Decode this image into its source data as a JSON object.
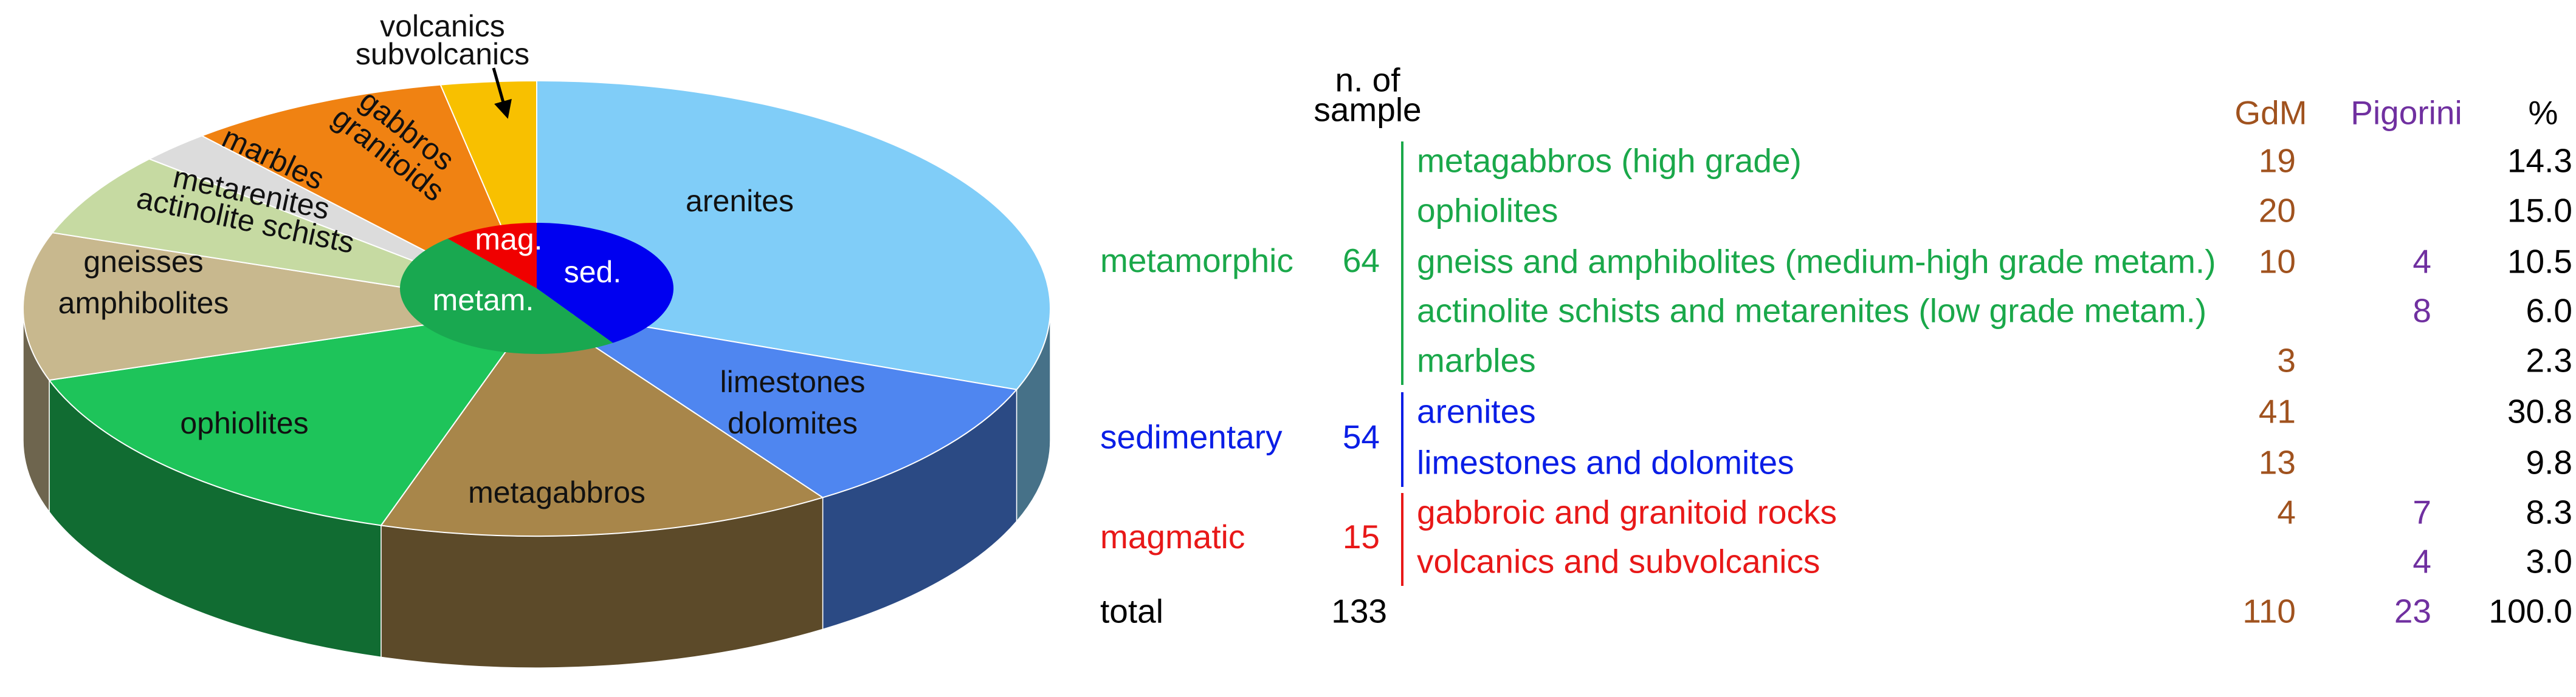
{
  "chart_data": [
    {
      "type": "pie3d",
      "categories": [
        [
          "arenites"
        ],
        [
          "limestones",
          "dolomites"
        ],
        [
          "metagabbros"
        ],
        [
          "ophiolites"
        ],
        [
          "gneisses",
          "amphibolites"
        ],
        [
          "metarenites",
          "actinolite schists"
        ],
        [
          "marbles"
        ],
        [
          "gabbros",
          "granitoids"
        ],
        [
          "volcanics",
          "subvolcanics"
        ]
      ],
      "values": [
        30.8,
        9.8,
        14.3,
        15.0,
        10.5,
        6.0,
        2.3,
        8.3,
        3.0
      ],
      "colors": [
        "#80cdf8",
        "#4f86f0",
        "#a8864a",
        "#1ec45a",
        "#c8b88e",
        "#c6daa2",
        "#dcdcdc",
        "#f08212",
        "#f8c000"
      ]
    },
    {
      "type": "pie",
      "categories": [
        "sed.",
        "metam.",
        "mag."
      ],
      "values": [
        54,
        64,
        15
      ],
      "colors": [
        "#0000f0",
        "#19a850",
        "#f00000"
      ]
    }
  ],
  "table": {
    "headers": {
      "count": [
        "n. of",
        "sample"
      ],
      "gdm": "GdM",
      "pigorini": "Pigorini",
      "pct": "%"
    },
    "groups": [
      {
        "name": "metamorphic",
        "count": 64,
        "color": "#1aa84a",
        "rows": [
          {
            "name": "metagabbros (high grade)",
            "gdm": 19,
            "pct": "14.3"
          },
          {
            "name": "ophiolites",
            "gdm": 20,
            "pct": "15.0"
          },
          {
            "name": "gneiss and amphibolites (medium-high grade metam.)",
            "gdm": 10,
            "pigorini": 4,
            "pct": "10.5"
          },
          {
            "name": "actinolite schists and metarenites (low grade metam.)",
            "pigorini": 8,
            "pct": "6.0"
          },
          {
            "name": "marbles",
            "gdm": 3,
            "pct": "2.3"
          }
        ]
      },
      {
        "name": "sedimentary",
        "count": 54,
        "color": "#0a1ee6",
        "rows": [
          {
            "name": "arenites",
            "gdm": 41,
            "pct": "30.8"
          },
          {
            "name": "limestones and dolomites",
            "gdm": 13,
            "pct": "9.8"
          }
        ]
      },
      {
        "name": "magmatic",
        "count": 15,
        "color": "#e81818",
        "rows": [
          {
            "name": "gabbroic and granitoid rocks",
            "gdm": 4,
            "pigorini": 7,
            "pct": "8.3"
          },
          {
            "name": "volcanics and subvolcanics",
            "pigorini": 4,
            "pct": "3.0"
          }
        ]
      }
    ],
    "total": {
      "label": "total",
      "count": 133,
      "gdm": 110,
      "pigorini": 23,
      "pct": "100.0"
    },
    "gdm_color": "#a0521e",
    "pigorini_color": "#7030a0"
  }
}
